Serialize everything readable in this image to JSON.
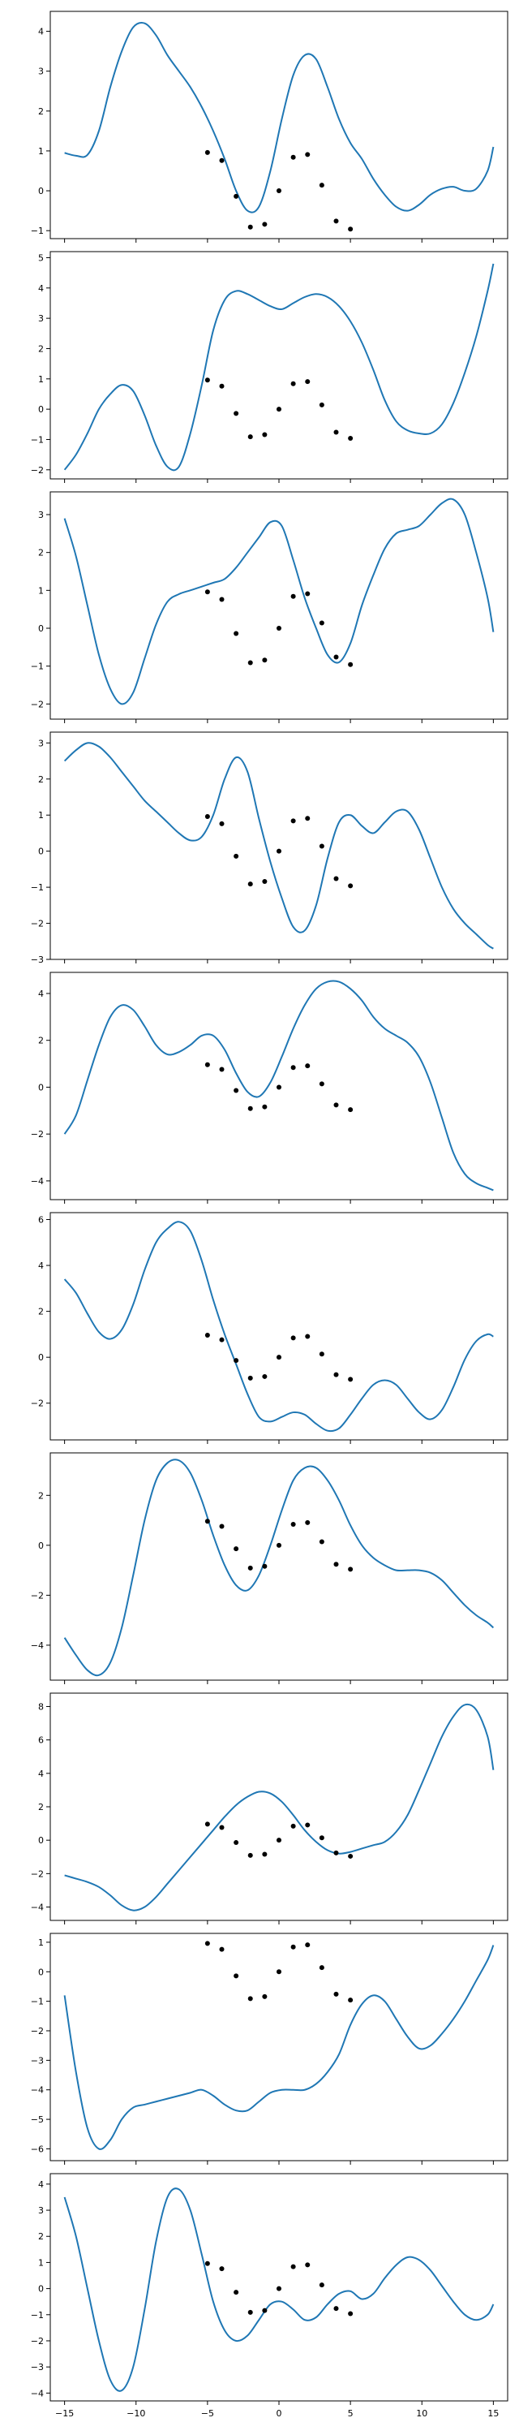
{
  "colors": {
    "line": "#1f77b4",
    "points": "#000000",
    "frame": "#000000",
    "background": "#ffffff"
  },
  "chart_data": [
    {
      "type": "line",
      "ylim": [
        -1.2,
        4.5
      ],
      "yticks": [
        -1,
        0,
        1,
        2,
        3,
        4
      ],
      "y_tick_labels": [
        "−1",
        "0",
        "1",
        "2",
        "3",
        "4"
      ],
      "series": [
        {
          "x": [
            -15,
            -14.2,
            -13.4,
            -12.6,
            -11.8,
            -11,
            -10.2,
            -9.4,
            -8.6,
            -7.8,
            -7,
            -6.2,
            -5.4,
            -4.6,
            -3.8,
            -3,
            -2.2,
            -1.4,
            -0.6,
            0.2,
            1,
            1.8,
            2.6,
            3.4,
            4.2,
            5,
            5.8,
            6.6,
            7.4,
            8.2,
            9,
            9.8,
            10.6,
            11.4,
            12.2,
            13,
            13.8,
            14.6,
            15
          ],
          "y": [
            0.95,
            0.88,
            0.9,
            1.5,
            2.6,
            3.5,
            4.1,
            4.2,
            3.9,
            3.4,
            3.0,
            2.6,
            2.1,
            1.5,
            0.8,
            0.0,
            -0.5,
            -0.4,
            0.5,
            1.8,
            2.9,
            3.4,
            3.3,
            2.6,
            1.8,
            1.2,
            0.8,
            0.3,
            -0.1,
            -0.4,
            -0.5,
            -0.35,
            -0.1,
            0.05,
            0.1,
            0.0,
            0.05,
            0.5,
            1.1
          ]
        }
      ]
    },
    {
      "type": "line",
      "ylim": [
        -2.3,
        5.2
      ],
      "yticks": [
        -2,
        -1,
        0,
        1,
        2,
        3,
        4,
        5
      ],
      "y_tick_labels": [
        "−2",
        "−1",
        "0",
        "1",
        "2",
        "3",
        "4",
        "5"
      ],
      "series": [
        {
          "x": [
            -15,
            -14.2,
            -13.4,
            -12.6,
            -11.8,
            -11,
            -10.2,
            -9.4,
            -8.6,
            -7.8,
            -7,
            -6.2,
            -5.4,
            -4.6,
            -3.8,
            -3,
            -2.2,
            -1.4,
            -0.6,
            0.2,
            1,
            1.8,
            2.6,
            3.4,
            4.2,
            5,
            5.8,
            6.6,
            7.4,
            8.2,
            9,
            9.8,
            10.6,
            11.4,
            12.2,
            13,
            13.8,
            14.6,
            15
          ],
          "y": [
            -2.0,
            -1.5,
            -0.8,
            0.0,
            0.5,
            0.8,
            0.6,
            -0.2,
            -1.2,
            -1.9,
            -1.9,
            -0.8,
            0.8,
            2.6,
            3.6,
            3.9,
            3.8,
            3.6,
            3.4,
            3.3,
            3.5,
            3.7,
            3.8,
            3.7,
            3.4,
            2.9,
            2.2,
            1.3,
            0.3,
            -0.4,
            -0.7,
            -0.8,
            -0.8,
            -0.5,
            0.2,
            1.2,
            2.4,
            3.9,
            4.8
          ]
        }
      ]
    },
    {
      "type": "line",
      "ylim": [
        -2.4,
        3.6
      ],
      "yticks": [
        -2,
        -1,
        0,
        1,
        2,
        3
      ],
      "y_tick_labels": [
        "−2",
        "−1",
        "0",
        "1",
        "2",
        "3"
      ],
      "series": [
        {
          "x": [
            -15,
            -14.2,
            -13.4,
            -12.6,
            -11.8,
            -11,
            -10.2,
            -9.4,
            -8.6,
            -7.8,
            -7,
            -6.2,
            -5.4,
            -4.6,
            -3.8,
            -3,
            -2.2,
            -1.4,
            -0.6,
            0.2,
            1,
            1.8,
            2.6,
            3.4,
            4.2,
            5,
            5.8,
            6.6,
            7.4,
            8.2,
            9,
            9.8,
            10.6,
            11.4,
            12.2,
            13,
            13.8,
            14.6,
            15
          ],
          "y": [
            2.9,
            1.9,
            0.6,
            -0.7,
            -1.6,
            -2.0,
            -1.7,
            -0.8,
            0.1,
            0.7,
            0.9,
            1.0,
            1.1,
            1.2,
            1.3,
            1.6,
            2.0,
            2.4,
            2.8,
            2.7,
            1.8,
            0.8,
            0.0,
            -0.7,
            -0.9,
            -0.4,
            0.6,
            1.4,
            2.1,
            2.5,
            2.6,
            2.7,
            3.0,
            3.3,
            3.4,
            3.0,
            2.0,
            0.8,
            -0.1
          ]
        }
      ]
    },
    {
      "type": "line",
      "ylim": [
        -3.0,
        3.3
      ],
      "yticks": [
        -3,
        -2,
        -1,
        0,
        1,
        2,
        3
      ],
      "y_tick_labels": [
        "−3",
        "−2",
        "−1",
        "0",
        "1",
        "2",
        "3"
      ],
      "series": [
        {
          "x": [
            -15,
            -14.2,
            -13.4,
            -12.6,
            -11.8,
            -11,
            -10.2,
            -9.4,
            -8.6,
            -7.8,
            -7,
            -6.2,
            -5.4,
            -4.6,
            -3.8,
            -3,
            -2.2,
            -1.4,
            -0.6,
            0.2,
            1,
            1.8,
            2.6,
            3.4,
            4.2,
            5,
            5.8,
            6.6,
            7.4,
            8.2,
            9,
            9.8,
            10.6,
            11.4,
            12.2,
            13,
            13.8,
            14.6,
            15
          ],
          "y": [
            2.5,
            2.8,
            3.0,
            2.9,
            2.6,
            2.2,
            1.8,
            1.4,
            1.1,
            0.8,
            0.5,
            0.3,
            0.4,
            1.0,
            2.0,
            2.6,
            2.2,
            0.9,
            -0.3,
            -1.3,
            -2.1,
            -2.2,
            -1.5,
            -0.2,
            0.8,
            1.0,
            0.7,
            0.5,
            0.8,
            1.1,
            1.1,
            0.6,
            -0.2,
            -1.0,
            -1.6,
            -2.0,
            -2.3,
            -2.6,
            -2.7
          ]
        }
      ]
    },
    {
      "type": "line",
      "ylim": [
        -4.8,
        4.9
      ],
      "yticks": [
        -4,
        -2,
        0,
        2,
        4
      ],
      "y_tick_labels": [
        "−4",
        "−2",
        "0",
        "2",
        "4"
      ],
      "series": [
        {
          "x": [
            -15,
            -14.2,
            -13.4,
            -12.6,
            -11.8,
            -11,
            -10.2,
            -9.4,
            -8.6,
            -7.8,
            -7,
            -6.2,
            -5.4,
            -4.6,
            -3.8,
            -3,
            -2.2,
            -1.4,
            -0.6,
            0.2,
            1,
            1.8,
            2.6,
            3.4,
            4.2,
            5,
            5.8,
            6.6,
            7.4,
            8.2,
            9,
            9.8,
            10.6,
            11.4,
            12.2,
            13,
            13.8,
            14.6,
            15
          ],
          "y": [
            -2.0,
            -1.2,
            0.3,
            1.8,
            3.0,
            3.5,
            3.3,
            2.6,
            1.8,
            1.4,
            1.5,
            1.8,
            2.2,
            2.2,
            1.6,
            0.6,
            -0.2,
            -0.4,
            0.2,
            1.3,
            2.5,
            3.5,
            4.2,
            4.5,
            4.5,
            4.2,
            3.7,
            3.0,
            2.5,
            2.2,
            1.9,
            1.3,
            0.2,
            -1.3,
            -2.8,
            -3.7,
            -4.1,
            -4.3,
            -4.4
          ]
        }
      ]
    },
    {
      "type": "line",
      "ylim": [
        -3.6,
        6.3
      ],
      "yticks": [
        -2,
        0,
        2,
        4,
        6
      ],
      "y_tick_labels": [
        "−2",
        "0",
        "2",
        "4",
        "6"
      ],
      "series": [
        {
          "x": [
            -15,
            -14.2,
            -13.4,
            -12.6,
            -11.8,
            -11,
            -10.2,
            -9.4,
            -8.6,
            -7.8,
            -7,
            -6.2,
            -5.4,
            -4.6,
            -3.8,
            -3,
            -2.2,
            -1.4,
            -0.6,
            0.2,
            1,
            1.8,
            2.6,
            3.4,
            4.2,
            5,
            5.8,
            6.6,
            7.4,
            8.2,
            9,
            9.8,
            10.6,
            11.4,
            12.2,
            13,
            13.8,
            14.6,
            15
          ],
          "y": [
            3.4,
            2.8,
            1.9,
            1.1,
            0.8,
            1.2,
            2.3,
            3.8,
            5.0,
            5.6,
            5.9,
            5.5,
            4.2,
            2.5,
            1.0,
            -0.3,
            -1.6,
            -2.6,
            -2.8,
            -2.6,
            -2.4,
            -2.5,
            -2.9,
            -3.2,
            -3.1,
            -2.5,
            -1.8,
            -1.2,
            -1.0,
            -1.2,
            -1.8,
            -2.4,
            -2.7,
            -2.3,
            -1.3,
            -0.1,
            0.7,
            1.0,
            0.9
          ]
        }
      ]
    },
    {
      "type": "line",
      "ylim": [
        -5.4,
        3.7
      ],
      "yticks": [
        -4,
        -2,
        0,
        2
      ],
      "y_tick_labels": [
        "−4",
        "−2",
        "0",
        "2"
      ],
      "series": [
        {
          "x": [
            -15,
            -14.2,
            -13.4,
            -12.6,
            -11.8,
            -11,
            -10.2,
            -9.4,
            -8.6,
            -7.8,
            -7,
            -6.2,
            -5.4,
            -4.6,
            -3.8,
            -3,
            -2.2,
            -1.4,
            -0.6,
            0.2,
            1,
            1.8,
            2.6,
            3.4,
            4.2,
            5,
            5.8,
            6.6,
            7.4,
            8.2,
            9,
            9.8,
            10.6,
            11.4,
            12.2,
            13,
            13.8,
            14.6,
            15
          ],
          "y": [
            -3.7,
            -4.4,
            -5.0,
            -5.2,
            -4.7,
            -3.3,
            -1.2,
            1.0,
            2.6,
            3.3,
            3.4,
            2.9,
            1.8,
            0.4,
            -0.8,
            -1.6,
            -1.8,
            -1.2,
            0.0,
            1.4,
            2.6,
            3.1,
            3.1,
            2.6,
            1.8,
            0.8,
            0.0,
            -0.5,
            -0.8,
            -1.0,
            -1.0,
            -1.0,
            -1.1,
            -1.4,
            -1.9,
            -2.4,
            -2.8,
            -3.1,
            -3.3
          ]
        }
      ]
    },
    {
      "type": "line",
      "ylim": [
        -4.8,
        8.8
      ],
      "yticks": [
        -4,
        -2,
        0,
        2,
        4,
        6,
        8
      ],
      "y_tick_labels": [
        "−4",
        "−2",
        "0",
        "2",
        "4",
        "6",
        "8"
      ],
      "series": [
        {
          "x": [
            -15,
            -14.2,
            -13.4,
            -12.6,
            -11.8,
            -11,
            -10.2,
            -9.4,
            -8.6,
            -7.8,
            -7,
            -6.2,
            -5.4,
            -4.6,
            -3.8,
            -3,
            -2.2,
            -1.4,
            -0.6,
            0.2,
            1,
            1.8,
            2.6,
            3.4,
            4.2,
            5,
            5.8,
            6.6,
            7.4,
            8.2,
            9,
            9.8,
            10.6,
            11.4,
            12.2,
            13,
            13.8,
            14.6,
            15
          ],
          "y": [
            -2.1,
            -2.3,
            -2.5,
            -2.8,
            -3.3,
            -3.9,
            -4.2,
            -4.0,
            -3.4,
            -2.6,
            -1.8,
            -1.0,
            -0.2,
            0.6,
            1.4,
            2.1,
            2.6,
            2.9,
            2.8,
            2.3,
            1.5,
            0.6,
            -0.1,
            -0.6,
            -0.8,
            -0.7,
            -0.5,
            -0.3,
            -0.1,
            0.5,
            1.5,
            3.0,
            4.6,
            6.2,
            7.4,
            8.1,
            7.8,
            6.2,
            4.2
          ]
        }
      ]
    },
    {
      "type": "line",
      "ylim": [
        -6.4,
        1.3
      ],
      "yticks": [
        -6,
        -5,
        -4,
        -3,
        -2,
        -1,
        0,
        1
      ],
      "y_tick_labels": [
        "−6",
        "−5",
        "−4",
        "−3",
        "−2",
        "−1",
        "0",
        "1"
      ],
      "series": [
        {
          "x": [
            -15,
            -14.2,
            -13.4,
            -12.6,
            -11.8,
            -11,
            -10.2,
            -9.4,
            -8.6,
            -7.8,
            -7,
            -6.2,
            -5.4,
            -4.6,
            -3.8,
            -3,
            -2.2,
            -1.4,
            -0.6,
            0.2,
            1,
            1.8,
            2.6,
            3.4,
            4.2,
            5,
            5.8,
            6.6,
            7.4,
            8.2,
            9,
            9.8,
            10.6,
            11.4,
            12.2,
            13,
            13.8,
            14.6,
            15
          ],
          "y": [
            -0.8,
            -3.4,
            -5.3,
            -6.0,
            -5.7,
            -5.0,
            -4.6,
            -4.5,
            -4.4,
            -4.3,
            -4.2,
            -4.1,
            -4.0,
            -4.2,
            -4.5,
            -4.7,
            -4.7,
            -4.4,
            -4.1,
            -4.0,
            -4.0,
            -4.0,
            -3.8,
            -3.4,
            -2.8,
            -1.8,
            -1.1,
            -0.8,
            -1.0,
            -1.6,
            -2.2,
            -2.6,
            -2.5,
            -2.1,
            -1.6,
            -1.0,
            -0.3,
            0.4,
            0.9
          ]
        }
      ]
    },
    {
      "type": "line",
      "ylim": [
        -4.3,
        4.4
      ],
      "yticks": [
        -4,
        -3,
        -2,
        -1,
        0,
        1,
        2,
        3,
        4
      ],
      "y_tick_labels": [
        "−4",
        "−3",
        "−2",
        "−1",
        "0",
        "1",
        "2",
        "3",
        "4"
      ],
      "xlim": [
        -16,
        16
      ],
      "xticks": [
        -15,
        -10,
        -5,
        0,
        5,
        10,
        15
      ],
      "x_tick_labels": [
        "−15",
        "−10",
        "−5",
        "0",
        "5",
        "10",
        "15"
      ],
      "series": [
        {
          "x": [
            -15,
            -14.2,
            -13.4,
            -12.6,
            -11.8,
            -11,
            -10.2,
            -9.4,
            -8.6,
            -7.8,
            -7,
            -6.2,
            -5.4,
            -4.6,
            -3.8,
            -3,
            -2.2,
            -1.4,
            -0.6,
            0.2,
            1,
            1.8,
            2.6,
            3.4,
            4.2,
            5,
            5.8,
            6.6,
            7.4,
            8.2,
            9,
            9.8,
            10.6,
            11.4,
            12.2,
            13,
            13.8,
            14.6,
            15
          ],
          "y": [
            3.5,
            2.0,
            0.0,
            -2.0,
            -3.5,
            -3.9,
            -3.0,
            -0.8,
            1.8,
            3.5,
            3.8,
            3.0,
            1.3,
            -0.5,
            -1.6,
            -2.0,
            -1.8,
            -1.2,
            -0.6,
            -0.5,
            -0.8,
            -1.2,
            -1.1,
            -0.6,
            -0.2,
            -0.1,
            -0.4,
            -0.2,
            0.4,
            0.9,
            1.2,
            1.1,
            0.7,
            0.1,
            -0.5,
            -1.0,
            -1.2,
            -1.0,
            -0.6
          ]
        }
      ]
    }
  ],
  "observations": {
    "x": [
      -5,
      -4,
      -3,
      -2,
      -1,
      0,
      1,
      2,
      3,
      4,
      5
    ],
    "y": [
      0.96,
      0.76,
      -0.14,
      -0.91,
      -0.84,
      0.0,
      0.84,
      0.91,
      0.14,
      -0.76,
      -0.96
    ]
  },
  "x_range": [
    -16,
    16
  ]
}
